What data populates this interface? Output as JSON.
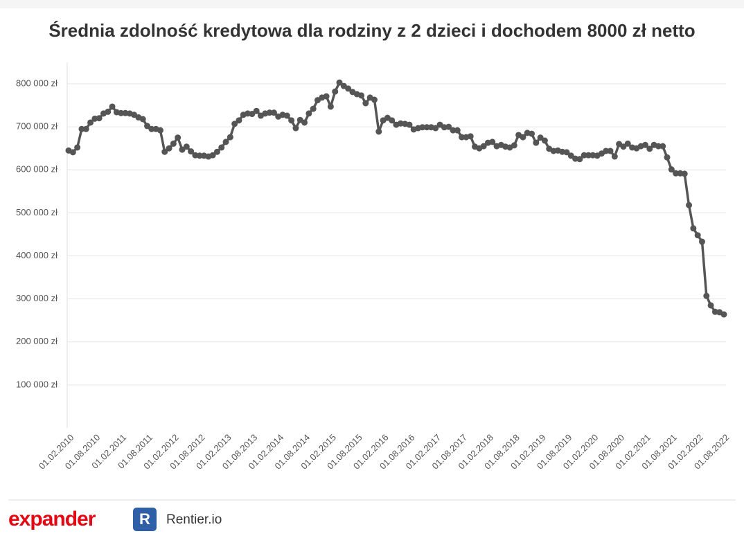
{
  "chart_data": {
    "type": "line",
    "title": "Średnia zdolność kredytowa dla rodziny z 2 dzieci i dochodem 8000 zł netto",
    "categories": [
      "01.02.2010",
      null,
      null,
      null,
      null,
      null,
      "01.08.2010",
      null,
      null,
      null,
      null,
      null,
      "01.02.2011",
      null,
      null,
      null,
      null,
      null,
      "01.08.2011",
      null,
      null,
      null,
      null,
      null,
      "01.02.2012",
      null,
      null,
      null,
      null,
      null,
      "01.08.2012",
      null,
      null,
      null,
      null,
      null,
      "01.02.2013",
      null,
      null,
      null,
      null,
      null,
      "01.08.2013",
      null,
      null,
      null,
      null,
      null,
      "01.02.2014",
      null,
      null,
      null,
      null,
      null,
      "01.08.2014",
      null,
      null,
      null,
      null,
      null,
      "01.02.2015",
      null,
      null,
      null,
      null,
      null,
      "01.08.2015",
      null,
      null,
      null,
      null,
      null,
      "01.02.2016",
      null,
      null,
      null,
      null,
      null,
      "01.08.2016",
      null,
      null,
      null,
      null,
      null,
      "01.02.2017",
      null,
      null,
      null,
      null,
      null,
      "01.08.2017",
      null,
      null,
      null,
      null,
      null,
      "01.02.2018",
      null,
      null,
      null,
      null,
      null,
      "01.08.2018",
      null,
      null,
      null,
      null,
      null,
      "01.02.2019",
      null,
      null,
      null,
      null,
      null,
      "01.08.2019",
      null,
      null,
      null,
      null,
      null,
      "01.02.2020",
      null,
      null,
      null,
      null,
      null,
      "01.08.2020",
      null,
      null,
      null,
      null,
      null,
      "01.02.2021",
      null,
      null,
      null,
      null,
      null,
      "01.08.2021",
      null,
      null,
      null,
      null,
      null,
      "01.02.2022",
      null,
      null,
      null,
      null,
      null,
      "01.08.2022"
    ],
    "values": [
      645000,
      641000,
      652000,
      695000,
      695000,
      710000,
      719000,
      720000,
      731000,
      735000,
      747000,
      734000,
      732000,
      732000,
      731000,
      728000,
      722000,
      718000,
      702000,
      695000,
      695000,
      692000,
      642000,
      650000,
      661000,
      675000,
      647000,
      654000,
      643000,
      634000,
      633000,
      633000,
      631000,
      634000,
      642000,
      652000,
      665000,
      676000,
      707000,
      715000,
      728000,
      731000,
      730000,
      737000,
      726000,
      731000,
      733000,
      733000,
      724000,
      728000,
      726000,
      715000,
      697000,
      716000,
      710000,
      731000,
      742000,
      762000,
      768000,
      771000,
      747000,
      782000,
      803000,
      795000,
      789000,
      781000,
      776000,
      773000,
      755000,
      768000,
      763000,
      689000,
      715000,
      721000,
      715000,
      705000,
      708000,
      707000,
      705000,
      694000,
      697000,
      699000,
      699000,
      699000,
      697000,
      705000,
      699000,
      700000,
      692000,
      692000,
      676000,
      676000,
      678000,
      654000,
      650000,
      655000,
      663000,
      665000,
      655000,
      658000,
      654000,
      652000,
      657000,
      681000,
      676000,
      686000,
      684000,
      663000,
      675000,
      668000,
      649000,
      644000,
      645000,
      642000,
      641000,
      633000,
      626000,
      625000,
      634000,
      634000,
      634000,
      633000,
      638000,
      644000,
      644000,
      631000,
      660000,
      654000,
      661000,
      652000,
      650000,
      655000,
      658000,
      649000,
      658000,
      655000,
      655000,
      629000,
      601000,
      592000,
      592000,
      591000,
      518000,
      464000,
      448000,
      433000,
      307000,
      285000,
      270000,
      269000,
      264000
    ],
    "color": "#555555",
    "ylim": [
      0,
      850000
    ],
    "yticks": [
      {
        "value": 100000,
        "label": "100 000 zł"
      },
      {
        "value": 200000,
        "label": "200 000 zł"
      },
      {
        "value": 300000,
        "label": "300 000 zł"
      },
      {
        "value": 400000,
        "label": "400 000 zł"
      },
      {
        "value": 500000,
        "label": "500 000 zł"
      },
      {
        "value": 600000,
        "label": "600 000 zł"
      },
      {
        "value": 700000,
        "label": "700 000 zł"
      },
      {
        "value": 800000,
        "label": "800 000 zł"
      }
    ],
    "grid": true
  },
  "footer": {
    "logos": [
      "expander",
      "R",
      "Rentier.io"
    ]
  }
}
